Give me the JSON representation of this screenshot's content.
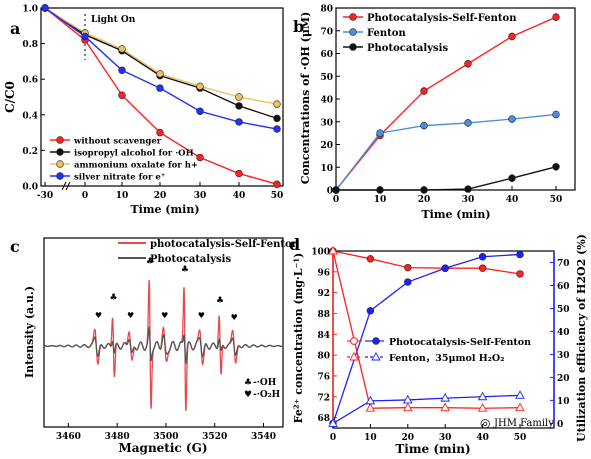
{
  "chart_data": [
    {
      "panel": "a",
      "type": "line",
      "ylabel": "C/C0",
      "xlabel": "Time (min)",
      "annotation": "Light On",
      "x_ticks": [
        "-30",
        "0",
        "10",
        "20",
        "30",
        "40",
        "50"
      ],
      "x": [
        -30,
        0,
        10,
        20,
        30,
        40,
        50
      ],
      "ylim": [
        0,
        1.0
      ],
      "y_ticks": [
        "0.0",
        "0.2",
        "0.4",
        "0.6",
        "0.8",
        "1.0"
      ],
      "series": [
        {
          "name": "without scavenger",
          "color": "#ff2020",
          "values": [
            1.0,
            0.82,
            0.51,
            0.3,
            0.16,
            0.07,
            0.01
          ]
        },
        {
          "name": "isopropyl alcohol for ·OH",
          "color": "#111111",
          "values": [
            1.0,
            0.85,
            0.76,
            0.62,
            0.55,
            0.45,
            0.38
          ]
        },
        {
          "name": "ammonium oxalate for h+",
          "color": "#f0c060",
          "values": [
            1.0,
            0.86,
            0.77,
            0.63,
            0.56,
            0.5,
            0.46
          ]
        },
        {
          "name": "silver nitrate for e⁺",
          "color": "#2030ff",
          "values": [
            1.0,
            0.84,
            0.65,
            0.55,
            0.42,
            0.36,
            0.32
          ]
        }
      ]
    },
    {
      "panel": "b",
      "type": "line",
      "ylabel": "Concentrations of ·OH (μM)",
      "xlabel": "Time (min)",
      "x": [
        0,
        10,
        20,
        30,
        40,
        50
      ],
      "x_ticks": [
        "0",
        "10",
        "20",
        "30",
        "40",
        "50"
      ],
      "ylim": [
        0,
        80
      ],
      "y_ticks": [
        "0",
        "10",
        "20",
        "30",
        "40",
        "50",
        "60",
        "70",
        "80"
      ],
      "series": [
        {
          "name": "Photocatalysis-Self-Fenton",
          "color": "#ff2020",
          "values": [
            0,
            24,
            43.5,
            55.5,
            67.5,
            76
          ]
        },
        {
          "name": "Fenton",
          "color": "#4a90e2",
          "values": [
            0,
            25,
            28.3,
            29.5,
            31.2,
            33.2
          ]
        },
        {
          "name": "Photocatalysis",
          "color": "#111111",
          "values": [
            0,
            0,
            0,
            0.4,
            5.2,
            10.2
          ]
        }
      ]
    },
    {
      "panel": "c",
      "type": "line",
      "ylabel": "Intensity (a.u.)",
      "xlabel": "Magnetic (G)",
      "x_ticks": [
        "3460",
        "3480",
        "3500",
        "3520",
        "3540"
      ],
      "xlim": [
        3450,
        3548
      ],
      "series": [
        {
          "name": "photocatalysis-Self-Fenton",
          "color": "#e8494b"
        },
        {
          "name": "Photocatalysis",
          "color": "#555555"
        }
      ],
      "marker_legend": [
        {
          "symbol": "♣",
          "text": "-·OH"
        },
        {
          "symbol": "♥",
          "text": "-·O₂H"
        }
      ]
    },
    {
      "panel": "d",
      "type": "line",
      "ylabel_left": "Fe²⁺ concentration (mg·L⁻¹)",
      "ylabel_right": "Utilization efficiency of H2O2 (%)",
      "xlabel": "Time (min)",
      "x": [
        0,
        10,
        20,
        30,
        40,
        50
      ],
      "x_ticks": [
        "0",
        "10",
        "20",
        "30",
        "40",
        "50"
      ],
      "ylim_left": [
        66,
        100
      ],
      "y_ticks_left": [
        "68",
        "72",
        "76",
        "80",
        "84",
        "88",
        "92",
        "96",
        "100"
      ],
      "ylim_right": [
        -2,
        75
      ],
      "y_ticks_right": [
        "0",
        "10",
        "20",
        "30",
        "40",
        "50",
        "60",
        "70"
      ],
      "series": [
        {
          "name": "Photocatalysis-Self-Fenton",
          "axis": "left",
          "color": "#ff2020",
          "marker": "filled-circle",
          "values": [
            100,
            98.5,
            96.8,
            96.7,
            96.7,
            95.6
          ]
        },
        {
          "name": "Photocatalysis-Self-Fenton",
          "axis": "right",
          "color": "#2020ff",
          "marker": "filled-circle",
          "values": [
            0,
            49,
            61.5,
            67.5,
            72.5,
            73.5
          ]
        },
        {
          "name": "Fenton，35μmol H₂O₂",
          "axis": "left",
          "color": "#ff2020",
          "marker": "open-triangle",
          "values": [
            100,
            69.8,
            69.9,
            69.9,
            69.8,
            69.9
          ]
        },
        {
          "name": "Fenton，35μmol H₂O₂",
          "axis": "right",
          "color": "#2020ff",
          "marker": "open-triangle",
          "values": [
            0,
            9.8,
            10.2,
            11,
            11.6,
            12.2
          ]
        }
      ]
    }
  ],
  "labels": {
    "panel_a": "a",
    "panel_b": "b",
    "panel_c": "c",
    "panel_d": "d"
  },
  "watermark": "JHM Family"
}
